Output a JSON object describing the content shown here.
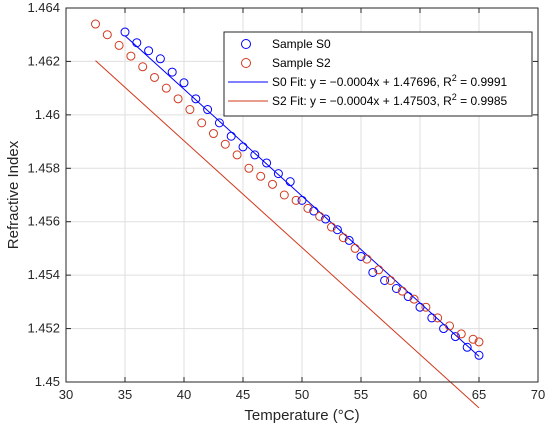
{
  "chart_data": {
    "type": "scatter",
    "xlabel": "Temperature (°C)",
    "ylabel": "Refractive Index",
    "xlim": [
      30,
      70
    ],
    "ylim": [
      1.45,
      1.464
    ],
    "x_ticks": [
      "30",
      "35",
      "40",
      "45",
      "50",
      "55",
      "60",
      "65",
      "70"
    ],
    "y_ticks": [
      "1.45",
      "1.452",
      "1.454",
      "1.456",
      "1.458",
      "1.46",
      "1.462",
      "1.464"
    ],
    "grid": true,
    "legend_position": "top-right",
    "series": [
      {
        "name": "Sample S0",
        "kind": "scatter",
        "marker": "circle",
        "color": "#0000ff",
        "points": [
          [
            35.0,
            1.4631
          ],
          [
            36.0,
            1.4627
          ],
          [
            37.0,
            1.4624
          ],
          [
            38.0,
            1.4621
          ],
          [
            39.0,
            1.4616
          ],
          [
            40.0,
            1.4612
          ],
          [
            41.0,
            1.4606
          ],
          [
            42.0,
            1.4602
          ],
          [
            43.0,
            1.4597
          ],
          [
            44.0,
            1.4592
          ],
          [
            45.0,
            1.4588
          ],
          [
            46.0,
            1.4585
          ],
          [
            47.0,
            1.4582
          ],
          [
            48.0,
            1.4578
          ],
          [
            49.0,
            1.4575
          ],
          [
            50.0,
            1.4568
          ],
          [
            51.0,
            1.4564
          ],
          [
            52.0,
            1.4561
          ],
          [
            53.0,
            1.4557
          ],
          [
            54.0,
            1.4553
          ],
          [
            55.0,
            1.4547
          ],
          [
            56.0,
            1.4541
          ],
          [
            57.0,
            1.4538
          ],
          [
            58.0,
            1.4535
          ],
          [
            59.0,
            1.4532
          ],
          [
            60.0,
            1.4528
          ],
          [
            61.0,
            1.4524
          ],
          [
            62.0,
            1.452
          ],
          [
            63.0,
            1.4517
          ],
          [
            64.0,
            1.4513
          ],
          [
            65.0,
            1.451
          ]
        ]
      },
      {
        "name": "Sample S2",
        "kind": "scatter",
        "marker": "circle",
        "color": "#d03a1e",
        "points": [
          [
            32.5,
            1.4634
          ],
          [
            33.5,
            1.463
          ],
          [
            34.5,
            1.4626
          ],
          [
            35.5,
            1.4622
          ],
          [
            36.5,
            1.4618
          ],
          [
            37.5,
            1.4614
          ],
          [
            38.5,
            1.461
          ],
          [
            39.5,
            1.4606
          ],
          [
            40.5,
            1.4602
          ],
          [
            41.5,
            1.4597
          ],
          [
            42.5,
            1.4593
          ],
          [
            43.5,
            1.4589
          ],
          [
            44.5,
            1.4585
          ],
          [
            45.5,
            1.458
          ],
          [
            46.5,
            1.4577
          ],
          [
            47.5,
            1.4574
          ],
          [
            48.5,
            1.457
          ],
          [
            49.5,
            1.4568
          ],
          [
            50.5,
            1.4565
          ],
          [
            51.5,
            1.4562
          ],
          [
            52.5,
            1.4558
          ],
          [
            53.5,
            1.4554
          ],
          [
            54.5,
            1.455
          ],
          [
            55.5,
            1.4546
          ],
          [
            56.5,
            1.4542
          ],
          [
            57.5,
            1.4538
          ],
          [
            58.5,
            1.4534
          ],
          [
            59.5,
            1.4531
          ],
          [
            60.5,
            1.4528
          ],
          [
            61.5,
            1.4524
          ],
          [
            62.5,
            1.4521
          ],
          [
            63.5,
            1.4518
          ],
          [
            64.5,
            1.4516
          ],
          [
            65.0,
            1.4515
          ]
        ]
      },
      {
        "name": "S0 Fit: y = −0.0004x + 1.47696, R² = 0.9991",
        "kind": "line",
        "color": "#0000ff",
        "points": [
          [
            35,
            1.46296
          ],
          [
            65,
            1.45096
          ]
        ]
      },
      {
        "name": "S2 Fit: y = −0.0004x + 1.47503, R² = 0.9985",
        "kind": "line",
        "color": "#d03a1e",
        "points": [
          [
            32.5,
            1.46203
          ],
          [
            65,
            1.44903
          ]
        ]
      }
    ],
    "legend": [
      {
        "label": "Sample S0",
        "marker": "circle",
        "color": "#0000ff"
      },
      {
        "label": "Sample S2",
        "marker": "circle",
        "color": "#d03a1e"
      },
      {
        "label_prefix": "S0 Fit: y = −0.0004x + 1.47696, R",
        "label_sup": "2",
        "label_suffix": " = 0.9991",
        "marker": "line",
        "color": "#0000ff"
      },
      {
        "label_prefix": "S2 Fit: y = −0.0004x + 1.47503, R",
        "label_sup": "2",
        "label_suffix": " = 0.9985",
        "marker": "line",
        "color": "#d03a1e"
      }
    ]
  }
}
